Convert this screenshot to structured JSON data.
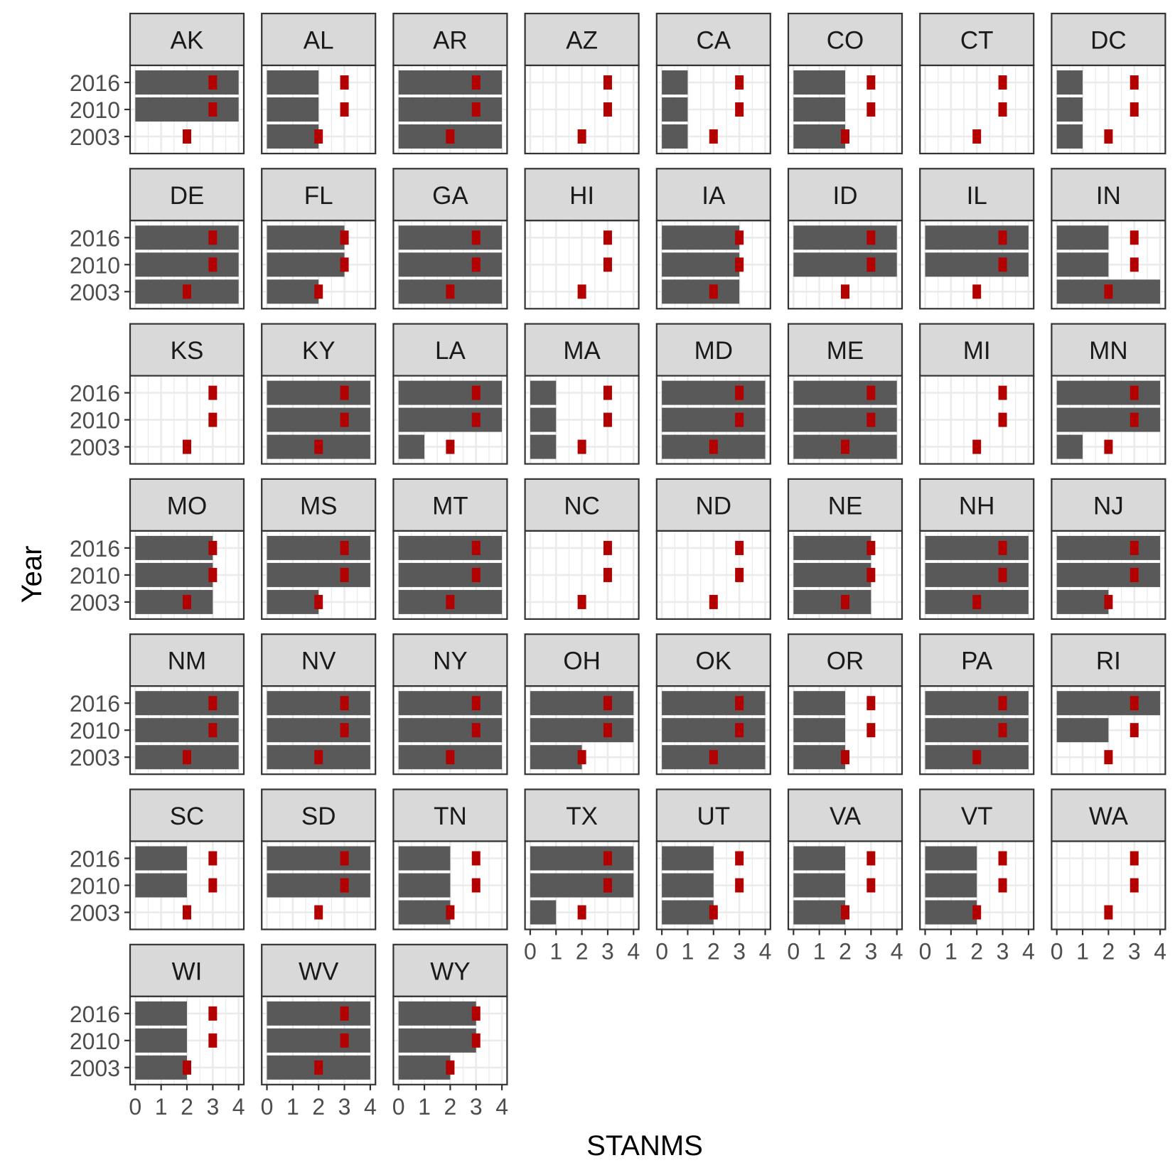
{
  "chart_data": {
    "type": "bar",
    "orientation": "horizontal",
    "faceted": true,
    "xlabel": "STANMS",
    "ylabel": "Year",
    "xlim": [
      0,
      4
    ],
    "x_ticks": [
      "0",
      "1",
      "2",
      "3",
      "4"
    ],
    "y_categories": [
      "2003",
      "2010",
      "2016"
    ],
    "reference_marker": {
      "color": "#B30000",
      "values": {
        "2003": 2,
        "2010": 3,
        "2016": 3
      }
    },
    "bar_color": "#595959",
    "strip_color": "#D9D9D9",
    "grid": true,
    "facets": [
      {
        "state": "AK",
        "values": {
          "2016": 4,
          "2010": 4,
          "2003": 0
        }
      },
      {
        "state": "AL",
        "values": {
          "2016": 2,
          "2010": 2,
          "2003": 2
        }
      },
      {
        "state": "AR",
        "values": {
          "2016": 4,
          "2010": 4,
          "2003": 4
        }
      },
      {
        "state": "AZ",
        "values": {
          "2016": 0,
          "2010": 0,
          "2003": 0
        }
      },
      {
        "state": "CA",
        "values": {
          "2016": 1,
          "2010": 1,
          "2003": 1
        }
      },
      {
        "state": "CO",
        "values": {
          "2016": 2,
          "2010": 2,
          "2003": 2
        }
      },
      {
        "state": "CT",
        "values": {
          "2016": 0,
          "2010": 0,
          "2003": 0
        }
      },
      {
        "state": "DC",
        "values": {
          "2016": 1,
          "2010": 1,
          "2003": 1
        }
      },
      {
        "state": "DE",
        "values": {
          "2016": 4,
          "2010": 4,
          "2003": 4
        }
      },
      {
        "state": "FL",
        "values": {
          "2016": 3,
          "2010": 3,
          "2003": 2
        }
      },
      {
        "state": "GA",
        "values": {
          "2016": 4,
          "2010": 4,
          "2003": 4
        }
      },
      {
        "state": "HI",
        "values": {
          "2016": 0,
          "2010": 0,
          "2003": 0
        }
      },
      {
        "state": "IA",
        "values": {
          "2016": 3,
          "2010": 3,
          "2003": 3
        }
      },
      {
        "state": "ID",
        "values": {
          "2016": 4,
          "2010": 4,
          "2003": 0
        }
      },
      {
        "state": "IL",
        "values": {
          "2016": 4,
          "2010": 4,
          "2003": 0
        }
      },
      {
        "state": "IN",
        "values": {
          "2016": 2,
          "2010": 2,
          "2003": 4
        }
      },
      {
        "state": "KS",
        "values": {
          "2016": 0,
          "2010": 0,
          "2003": 0
        }
      },
      {
        "state": "KY",
        "values": {
          "2016": 4,
          "2010": 4,
          "2003": 4
        }
      },
      {
        "state": "LA",
        "values": {
          "2016": 4,
          "2010": 4,
          "2003": 1
        }
      },
      {
        "state": "MA",
        "values": {
          "2016": 1,
          "2010": 1,
          "2003": 1
        }
      },
      {
        "state": "MD",
        "values": {
          "2016": 4,
          "2010": 4,
          "2003": 4
        }
      },
      {
        "state": "ME",
        "values": {
          "2016": 4,
          "2010": 4,
          "2003": 4
        }
      },
      {
        "state": "MI",
        "values": {
          "2016": 0,
          "2010": 0,
          "2003": 0
        }
      },
      {
        "state": "MN",
        "values": {
          "2016": 4,
          "2010": 4,
          "2003": 1
        }
      },
      {
        "state": "MO",
        "values": {
          "2016": 3,
          "2010": 3,
          "2003": 3
        }
      },
      {
        "state": "MS",
        "values": {
          "2016": 4,
          "2010": 4,
          "2003": 2
        }
      },
      {
        "state": "MT",
        "values": {
          "2016": 4,
          "2010": 4,
          "2003": 4
        }
      },
      {
        "state": "NC",
        "values": {
          "2016": 0,
          "2010": 0,
          "2003": 0
        }
      },
      {
        "state": "ND",
        "values": {
          "2016": 0,
          "2010": 0,
          "2003": 0
        }
      },
      {
        "state": "NE",
        "values": {
          "2016": 3,
          "2010": 3,
          "2003": 3
        }
      },
      {
        "state": "NH",
        "values": {
          "2016": 4,
          "2010": 4,
          "2003": 4
        }
      },
      {
        "state": "NJ",
        "values": {
          "2016": 4,
          "2010": 4,
          "2003": 2
        }
      },
      {
        "state": "NM",
        "values": {
          "2016": 4,
          "2010": 4,
          "2003": 4
        }
      },
      {
        "state": "NV",
        "values": {
          "2016": 4,
          "2010": 4,
          "2003": 4
        }
      },
      {
        "state": "NY",
        "values": {
          "2016": 4,
          "2010": 4,
          "2003": 4
        }
      },
      {
        "state": "OH",
        "values": {
          "2016": 4,
          "2010": 4,
          "2003": 2
        }
      },
      {
        "state": "OK",
        "values": {
          "2016": 4,
          "2010": 4,
          "2003": 4
        }
      },
      {
        "state": "OR",
        "values": {
          "2016": 2,
          "2010": 2,
          "2003": 2
        }
      },
      {
        "state": "PA",
        "values": {
          "2016": 4,
          "2010": 4,
          "2003": 4
        }
      },
      {
        "state": "RI",
        "values": {
          "2016": 4,
          "2010": 2,
          "2003": 0
        }
      },
      {
        "state": "SC",
        "values": {
          "2016": 2,
          "2010": 2,
          "2003": 0
        }
      },
      {
        "state": "SD",
        "values": {
          "2016": 4,
          "2010": 4,
          "2003": 0
        }
      },
      {
        "state": "TN",
        "values": {
          "2016": 2,
          "2010": 2,
          "2003": 2
        }
      },
      {
        "state": "TX",
        "values": {
          "2016": 4,
          "2010": 4,
          "2003": 1
        }
      },
      {
        "state": "UT",
        "values": {
          "2016": 2,
          "2010": 2,
          "2003": 2
        }
      },
      {
        "state": "VA",
        "values": {
          "2016": 2,
          "2010": 2,
          "2003": 2
        }
      },
      {
        "state": "VT",
        "values": {
          "2016": 2,
          "2010": 2,
          "2003": 2
        }
      },
      {
        "state": "WA",
        "values": {
          "2016": 0,
          "2010": 0,
          "2003": 0
        }
      },
      {
        "state": "WI",
        "values": {
          "2016": 2,
          "2010": 2,
          "2003": 2
        }
      },
      {
        "state": "WV",
        "values": {
          "2016": 4,
          "2010": 4,
          "2003": 4
        }
      },
      {
        "state": "WY",
        "values": {
          "2016": 3,
          "2010": 3,
          "2003": 2
        }
      }
    ]
  }
}
